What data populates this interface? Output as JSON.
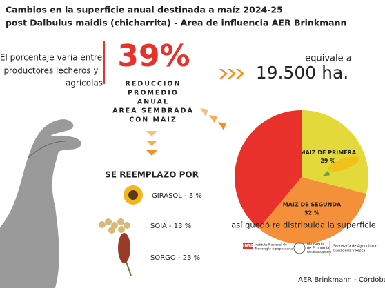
{
  "header": {
    "title_lines": [
      "Cambios en la superficie anual destinada a maíz 2024-25",
      "post Dalbulus maidis (chicharrita) - Area de influencia AER Brinkmann"
    ]
  },
  "note_lines": [
    "El porcentaje varia entre",
    "productores lecheros y",
    "agrícolas"
  ],
  "headline": {
    "figure": "39%",
    "caption_lines": [
      "REDUCCION",
      "PROMEDIO",
      "ANUAL",
      "AREA SEMBRADA",
      "CON MAIZ"
    ]
  },
  "equivalence": {
    "lead": "equivale a",
    "amount": "19.500 ha."
  },
  "replacement": {
    "title": "SE REEMPLAZO POR",
    "items": [
      "GIRASOL - 3 %",
      "SOJA - 13 %",
      "SORGO - 23 %"
    ]
  },
  "chart_data": {
    "type": "pie",
    "categories": [
      null,
      "MAIZ DE PRIMERA",
      "MAIZ DE SEGUNDA"
    ],
    "values": [
      39,
      29,
      32
    ],
    "value_labels": [
      null,
      "29 %",
      "32 %"
    ],
    "colors": [
      "#e8312a",
      "#e3d93a",
      "#f5903a"
    ],
    "caption": "así quedó re distribuida la superficie"
  },
  "footer": {
    "inta_short": "INTA",
    "inta_name": [
      "Instituto Nacional de",
      "Tecnología Agropecuaria"
    ],
    "ministry": [
      "Ministerio",
      "de Economía",
      "República Argentina"
    ],
    "secretariat": [
      "Secretaría de Agricultura,",
      "Ganadería y Pesca"
    ],
    "office": "AER Brinkmann - Córdoba"
  }
}
